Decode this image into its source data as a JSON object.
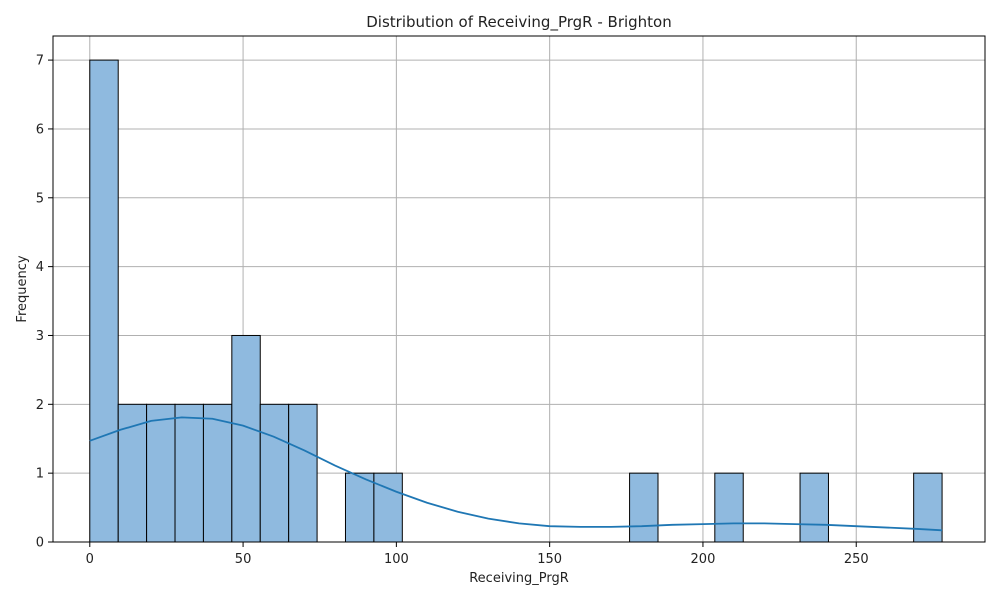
{
  "chart_data": {
    "type": "bar",
    "title": "Distribution of Receiving_PrgR - Brighton",
    "xlabel": "Receiving_PrgR",
    "ylabel": "Frequency",
    "xlim": [
      -12,
      292
    ],
    "ylim": [
      0,
      7.35
    ],
    "xticks": [
      0,
      50,
      100,
      150,
      200,
      250
    ],
    "yticks": [
      0,
      1,
      2,
      3,
      4,
      5,
      6,
      7
    ],
    "grid": true,
    "bin_width": 9.27,
    "bins": [
      {
        "x0": 0,
        "count": 7
      },
      {
        "x0": 9.27,
        "count": 2
      },
      {
        "x0": 18.53,
        "count": 2
      },
      {
        "x0": 27.8,
        "count": 2
      },
      {
        "x0": 37.07,
        "count": 2
      },
      {
        "x0": 46.33,
        "count": 3
      },
      {
        "x0": 55.6,
        "count": 2
      },
      {
        "x0": 64.87,
        "count": 2
      },
      {
        "x0": 83.4,
        "count": 1
      },
      {
        "x0": 92.67,
        "count": 1
      },
      {
        "x0": 176.07,
        "count": 1
      },
      {
        "x0": 203.87,
        "count": 1
      },
      {
        "x0": 231.67,
        "count": 1
      },
      {
        "x0": 268.73,
        "count": 1
      }
    ],
    "kde": {
      "x": [
        0,
        10,
        20,
        30,
        40,
        50,
        60,
        70,
        80,
        90,
        100,
        110,
        120,
        130,
        140,
        150,
        160,
        170,
        180,
        190,
        200,
        210,
        220,
        230,
        240,
        250,
        260,
        270,
        278
      ],
      "y": [
        1.47,
        1.63,
        1.76,
        1.81,
        1.79,
        1.69,
        1.53,
        1.33,
        1.11,
        0.91,
        0.73,
        0.57,
        0.44,
        0.34,
        0.27,
        0.23,
        0.22,
        0.22,
        0.23,
        0.25,
        0.26,
        0.27,
        0.27,
        0.26,
        0.25,
        0.23,
        0.21,
        0.19,
        0.17
      ]
    },
    "colors": {
      "bar_fill": "#8fbadf",
      "bar_edge": "#000000",
      "kde_line": "#1f77b4",
      "grid": "#b0b0b0"
    }
  }
}
